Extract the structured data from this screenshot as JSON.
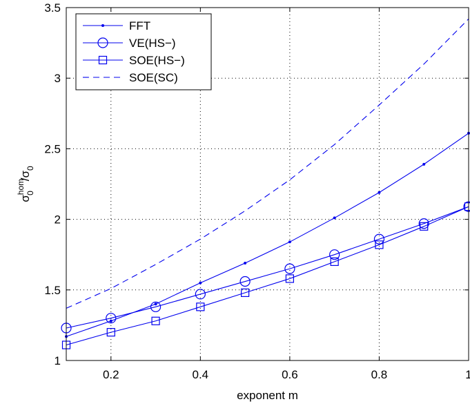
{
  "chart_data": {
    "type": "line",
    "xlabel": "exponent m",
    "ylabel": {
      "main": "σ",
      "sup": "hom",
      "sub1": "0",
      "slash": "/σ",
      "sub2": "0"
    },
    "xlim": [
      0.1,
      1.0
    ],
    "ylim": [
      1.0,
      3.5
    ],
    "xticks": [
      0.2,
      0.4,
      0.6,
      0.8,
      1.0
    ],
    "xtick_labels": [
      "0.2",
      "0.4",
      "0.6",
      "0.8",
      "1"
    ],
    "yticks": [
      1.0,
      1.5,
      2.0,
      2.5,
      3.0,
      3.5
    ],
    "ytick_labels": [
      "1",
      "1.5",
      "2",
      "2.5",
      "3",
      "3.5"
    ],
    "grid": true,
    "legend_position": "top-left",
    "color": "#0000ee",
    "series": [
      {
        "name": "FFT",
        "style": "solid",
        "marker": "dot",
        "x": [
          0.1,
          0.2,
          0.3,
          0.4,
          0.5,
          0.6,
          0.7,
          0.8,
          0.9,
          1.0
        ],
        "y": [
          1.17,
          1.28,
          1.4,
          1.55,
          1.69,
          1.84,
          2.01,
          2.19,
          2.39,
          2.61
        ]
      },
      {
        "name": "VE(HS−)",
        "style": "solid",
        "marker": "circle",
        "x": [
          0.1,
          0.2,
          0.3,
          0.4,
          0.5,
          0.6,
          0.7,
          0.8,
          0.9,
          1.0
        ],
        "y": [
          1.23,
          1.3,
          1.38,
          1.47,
          1.56,
          1.65,
          1.75,
          1.86,
          1.97,
          2.09
        ]
      },
      {
        "name": "SOE(HS−)",
        "style": "solid",
        "marker": "square",
        "x": [
          0.1,
          0.2,
          0.3,
          0.4,
          0.5,
          0.6,
          0.7,
          0.8,
          0.9,
          1.0
        ],
        "y": [
          1.11,
          1.2,
          1.28,
          1.38,
          1.48,
          1.58,
          1.7,
          1.82,
          1.95,
          2.09
        ]
      },
      {
        "name": "SOE(SC)",
        "style": "dashed",
        "marker": "none",
        "x": [
          0.1,
          0.2,
          0.3,
          0.4,
          0.5,
          0.6,
          0.7,
          0.8,
          0.9,
          1.0
        ],
        "y": [
          1.37,
          1.51,
          1.68,
          1.86,
          2.06,
          2.28,
          2.53,
          2.81,
          3.1,
          3.42
        ]
      }
    ]
  }
}
